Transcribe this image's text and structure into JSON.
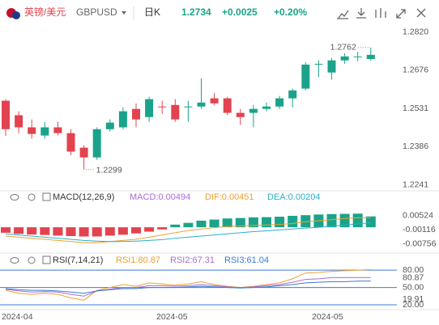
{
  "header": {
    "name": "英镑/美元",
    "code": "GBPUSD",
    "period": "日K",
    "price": "1.2734",
    "change": "+0.0025",
    "change_pct": "+0.20%"
  },
  "xlabels": [
    "2024-04",
    "2024-05",
    "2024-05"
  ],
  "chart_data": [
    {
      "type": "candlestick",
      "open": [
        1.256,
        1.2505,
        1.2459,
        1.2428,
        1.2459,
        1.2437,
        1.2382,
        1.2345,
        1.2452,
        1.2459,
        1.2529,
        1.2498,
        1.2538,
        1.2544,
        1.2535,
        1.2538,
        1.2569,
        1.2569,
        1.2514,
        1.2514,
        1.2529,
        1.2538,
        1.2569,
        1.2606,
        1.2697,
        1.2667,
        1.2713,
        1.2725,
        1.2718
      ],
      "high": [
        1.2566,
        1.252,
        1.2489,
        1.248,
        1.248,
        1.2452,
        1.2391,
        1.2459,
        1.2489,
        1.2535,
        1.255,
        1.2575,
        1.256,
        1.2566,
        1.256,
        1.2645,
        1.259,
        1.2575,
        1.2529,
        1.2544,
        1.2553,
        1.2578,
        1.2606,
        1.2706,
        1.2713,
        1.2722,
        1.274,
        1.2745,
        1.2762
      ],
      "low": [
        1.2427,
        1.2437,
        1.2416,
        1.2416,
        1.2428,
        1.2354,
        1.2299,
        1.2336,
        1.2443,
        1.2452,
        1.2459,
        1.248,
        1.251,
        1.248,
        1.248,
        1.2529,
        1.2544,
        1.2505,
        1.2468,
        1.2459,
        1.252,
        1.2529,
        1.2535,
        1.2599,
        1.265,
        1.264,
        1.27,
        1.271,
        1.2712
      ],
      "close": [
        1.2452,
        1.2459,
        1.2434,
        1.2459,
        1.2437,
        1.2367,
        1.2345,
        1.2452,
        1.2477,
        1.252,
        1.2489,
        1.2566,
        1.2535,
        1.2489,
        1.2538,
        1.2553,
        1.255,
        1.2514,
        1.2498,
        1.2529,
        1.2538,
        1.2569,
        1.2599,
        1.2697,
        1.27,
        1.2713,
        1.2728,
        1.2728,
        1.2734
      ],
      "up_color": "#1aa38a",
      "down_color": "#e2434f",
      "ylim": [
        1.22,
        1.285
      ],
      "yticks": [
        {
          "value": 1.282,
          "label": "1.2820"
        },
        1.2676,
        1.2531,
        1.2386,
        1.2241
      ],
      "annotations": {
        "high": 1.2762,
        "low": 1.2299
      }
    },
    {
      "type": "macd",
      "title": "MACD(12,26,9)",
      "legend": [
        "MACD:0.00494",
        "DIF:0.00451",
        "DEA:0.00204"
      ],
      "series": [
        {
          "name": "MACD",
          "color": "#a66dd4",
          "values": [
            -0.0025,
            -0.003,
            -0.0033,
            -0.0035,
            -0.0038,
            -0.004,
            -0.0042,
            -0.0042,
            -0.0038,
            -0.0034,
            -0.0028,
            -0.002,
            -0.001,
            0.0012,
            0.002,
            0.003,
            0.0035,
            0.004,
            0.0042,
            0.0045,
            0.0046,
            0.0048,
            0.0052,
            0.0055,
            0.0058,
            0.006,
            0.0061,
            0.0062,
            0.00494
          ]
        },
        {
          "name": "DIF",
          "color": "#f0a030",
          "values": [
            -0.004,
            -0.0045,
            -0.005,
            -0.0055,
            -0.006,
            -0.0065,
            -0.007,
            -0.007,
            -0.0065,
            -0.006,
            -0.0055,
            -0.0045,
            -0.0035,
            -0.0025,
            -0.0015,
            -0.0008,
            -0.0002,
            0.0003,
            0.0006,
            0.0008,
            0.001,
            0.0013,
            0.0017,
            0.0025,
            0.003,
            0.0035,
            0.004,
            0.0043,
            0.00451
          ]
        },
        {
          "name": "DEA",
          "color": "#2ab0c8",
          "values": [
            -0.003,
            -0.0035,
            -0.004,
            -0.0045,
            -0.005,
            -0.0055,
            -0.006,
            -0.0063,
            -0.0065,
            -0.0065,
            -0.0063,
            -0.006,
            -0.0056,
            -0.005,
            -0.0045,
            -0.004,
            -0.0035,
            -0.003,
            -0.0025,
            -0.002,
            -0.0016,
            -0.0012,
            -0.0008,
            -0.0004,
            0,
            0.0005,
            0.001,
            0.0015,
            0.00204
          ]
        }
      ],
      "ylim": [
        -0.011,
        0.0096
      ],
      "yticks": [
        0.00524,
        -0.00116,
        -0.00756
      ]
    },
    {
      "type": "rsi",
      "title": "RSI(7,14,21)",
      "legend": [
        "RSI1:80.87",
        "RSI2:67.31",
        "RSI3:61.04"
      ],
      "series": [
        {
          "name": "RSI1",
          "color": "#f0a030",
          "values": [
            45,
            40,
            38,
            40,
            38,
            32,
            28,
            45,
            50,
            55,
            52,
            58,
            56,
            54,
            56,
            60,
            55,
            52,
            50,
            52,
            55,
            58,
            65,
            75,
            76,
            78,
            79,
            80,
            80.87
          ]
        },
        {
          "name": "RSI2",
          "color": "#a66dd4",
          "values": [
            47,
            44,
            42,
            43,
            42,
            38,
            35,
            44,
            47,
            50,
            50,
            53,
            53,
            52,
            53,
            55,
            53,
            51,
            50,
            51,
            53,
            55,
            59,
            64,
            65,
            67,
            67,
            67,
            67.31
          ]
        },
        {
          "name": "RSI3",
          "color": "#3a7bd5",
          "values": [
            48,
            46,
            45,
            45,
            44,
            42,
            40,
            44,
            46,
            48,
            48,
            50,
            50,
            50,
            51,
            52,
            51,
            50,
            49,
            50,
            51,
            53,
            55,
            58,
            59,
            60,
            60,
            61,
            61.04
          ]
        }
      ],
      "ylim": [
        13,
        97
      ],
      "yticks": [
        {
          "value": 80,
          "label": "80.00"
        },
        {
          "value": 50,
          "label": "50.00"
        },
        {
          "value": 20,
          "label": "20.00"
        }
      ],
      "markers": [
        80.87,
        19.91
      ]
    }
  ]
}
